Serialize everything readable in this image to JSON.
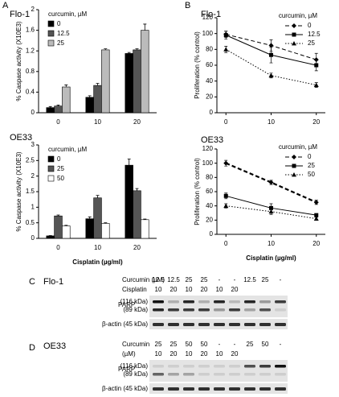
{
  "panel_labels": [
    "A",
    "B",
    "C",
    "D"
  ],
  "chart_data": [
    {
      "type": "bar",
      "title": "Flo-1",
      "y_label": "% Caspase activity (X10E3)",
      "legend_title": "curcumin, µM",
      "categories": [
        "0",
        "10",
        "20"
      ],
      "ylim": [
        0,
        2
      ],
      "yticks": [
        0,
        0.4,
        0.8,
        1.2,
        1.6,
        2
      ],
      "series": [
        {
          "name": "0",
          "color": "#000000",
          "values": [
            0.1,
            0.3,
            1.15
          ],
          "errors": [
            0.02,
            0.03,
            0.02
          ]
        },
        {
          "name": "12.5",
          "color": "#555555",
          "values": [
            0.13,
            0.53,
            1.22
          ],
          "errors": [
            0.02,
            0.04,
            0.02
          ]
        },
        {
          "name": "25",
          "color": "#bbbbbb",
          "values": [
            0.5,
            1.22,
            1.6
          ],
          "errors": [
            0.04,
            0.02,
            0.12
          ]
        }
      ]
    },
    {
      "type": "bar",
      "title": "OE33",
      "y_label": "% Caspase activity (X10E3)",
      "x_label": "Cisplatin (µg/ml)",
      "legend_title": "curcumin, µM",
      "categories": [
        "0",
        "10",
        "20"
      ],
      "ylim": [
        0,
        3
      ],
      "yticks": [
        0,
        0.5,
        1,
        1.5,
        2,
        2.5,
        3
      ],
      "series": [
        {
          "name": "0",
          "color": "#000000",
          "values": [
            0.08,
            0.63,
            2.35
          ],
          "errors": [
            0.01,
            0.06,
            0.2
          ]
        },
        {
          "name": "25",
          "color": "#555555",
          "values": [
            0.72,
            1.3,
            1.53
          ],
          "errors": [
            0.03,
            0.08,
            0.07
          ]
        },
        {
          "name": "50",
          "color": "#ffffff",
          "values": [
            0.4,
            0.48,
            0.6
          ],
          "errors": [
            0.02,
            0.02,
            0.02
          ]
        }
      ]
    },
    {
      "type": "line",
      "title": "Flo-1",
      "y_label": "Proliferation (% control)",
      "legend_title": "curcumin, µM",
      "x": [
        0,
        10,
        20
      ],
      "xlim": [
        -2,
        22
      ],
      "xticks": [
        0,
        10,
        20
      ],
      "ylim": [
        0,
        120
      ],
      "yticks": [
        0,
        20,
        40,
        60,
        80,
        100,
        120
      ],
      "series": [
        {
          "name": "0",
          "color": "#000000",
          "marker": "diamond",
          "dash": "dashed",
          "values": [
            99,
            85,
            67
          ],
          "errors": [
            4,
            7,
            8
          ]
        },
        {
          "name": "12.5",
          "color": "#000000",
          "marker": "square",
          "dash": "solid",
          "values": [
            98,
            73,
            60
          ],
          "errors": [
            5,
            10,
            7
          ]
        },
        {
          "name": "25",
          "color": "#000000",
          "marker": "triangle",
          "dash": "dotted",
          "values": [
            80,
            47,
            35
          ],
          "errors": [
            4,
            3,
            3
          ]
        }
      ]
    },
    {
      "type": "line",
      "title": "OE33",
      "y_label": "Proliferation (% control)",
      "x_label": "Cisplatin (µg/ml)",
      "legend_title": "curcumin, µM",
      "x": [
        0,
        10,
        20
      ],
      "xlim": [
        -2,
        22
      ],
      "xticks": [
        0,
        10,
        20
      ],
      "ylim": [
        0,
        120
      ],
      "yticks": [
        0,
        20,
        40,
        60,
        80,
        100,
        120
      ],
      "series": [
        {
          "name": "0",
          "color": "#000000",
          "marker": "diamond",
          "dash": "dashed",
          "values": [
            100,
            73,
            45
          ],
          "errors": [
            4,
            3,
            3
          ]
        },
        {
          "name": "25",
          "color": "#000000",
          "marker": "square",
          "dash": "solid",
          "values": [
            54,
            37,
            27
          ],
          "errors": [
            4,
            6,
            2
          ]
        },
        {
          "name": "50",
          "color": "#000000",
          "marker": "triangle",
          "dash": "dotted",
          "values": [
            40,
            32,
            22
          ],
          "errors": [
            3,
            4,
            2
          ]
        }
      ]
    }
  ],
  "blots": [
    {
      "cell_line": "Flo-1",
      "rows": [
        {
          "name": "Curcumin (µM)",
          "values": [
            "12.5",
            "12.5",
            "25",
            "25",
            "-",
            "-",
            "12.5",
            "25",
            "-"
          ]
        },
        {
          "name": "Cisplatin",
          "values": [
            "10",
            "20",
            "10",
            "20",
            "10",
            "20",
            null,
            null,
            null
          ]
        }
      ],
      "bands": [
        "PARP",
        "(116 kDa)",
        "(89 kDa)",
        "β-actin (45 kDa)"
      ]
    },
    {
      "cell_line": "OE33",
      "rows": [
        {
          "name": "Curcumin",
          "values": [
            "25",
            "25",
            "50",
            "50",
            "-",
            "-",
            "25",
            "50",
            "-"
          ]
        },
        {
          "name": "(µM)",
          "values": [
            "10",
            "20",
            "10",
            "20",
            "10",
            "20",
            null,
            null,
            null
          ]
        }
      ],
      "bands": [
        "PARP",
        "(116 kDa)",
        "(89 kDa)",
        "β-actin (45 kDa)"
      ]
    }
  ]
}
